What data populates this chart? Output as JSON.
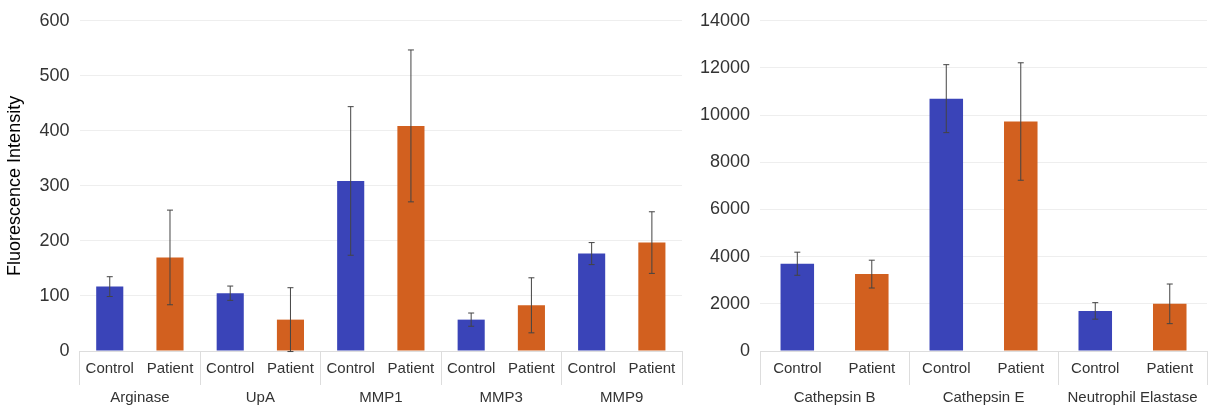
{
  "chart_data": [
    {
      "type": "bar",
      "ylabel": "Fluorescence Intensity",
      "categories": [
        "Arginase",
        "UpA",
        "MMP1",
        "MMP3",
        "MMP9"
      ],
      "series": [
        {
          "name": "Control",
          "color": "#3a44b8",
          "values": [
            117,
            105,
            309,
            57,
            177
          ],
          "errors": [
            18,
            13,
            135,
            12,
            20
          ]
        },
        {
          "name": "Patient",
          "color": "#d2601f",
          "values": [
            170,
            57,
            409,
            83,
            197
          ],
          "errors": [
            86,
            58,
            138,
            50,
            56
          ]
        }
      ],
      "ylim": [
        0,
        600
      ],
      "yticks": [
        0,
        100,
        200,
        300,
        400,
        500,
        600
      ],
      "grid": "y",
      "legend": false
    },
    {
      "type": "bar",
      "categories": [
        "Cathepsin B",
        "Cathepsin E",
        "Neutrophil Elastase"
      ],
      "series": [
        {
          "name": "Control",
          "color": "#3a44b8",
          "values": [
            3700,
            10700,
            1700
          ],
          "errors": [
            490,
            1440,
            350
          ]
        },
        {
          "name": "Patient",
          "color": "#d2601f",
          "values": [
            3260,
            9730,
            2000
          ],
          "errors": [
            590,
            2490,
            840
          ]
        }
      ],
      "ylim": [
        0,
        14000
      ],
      "yticks": [
        0,
        2000,
        4000,
        6000,
        8000,
        10000,
        12000,
        14000
      ],
      "grid": "y",
      "legend": false
    }
  ]
}
